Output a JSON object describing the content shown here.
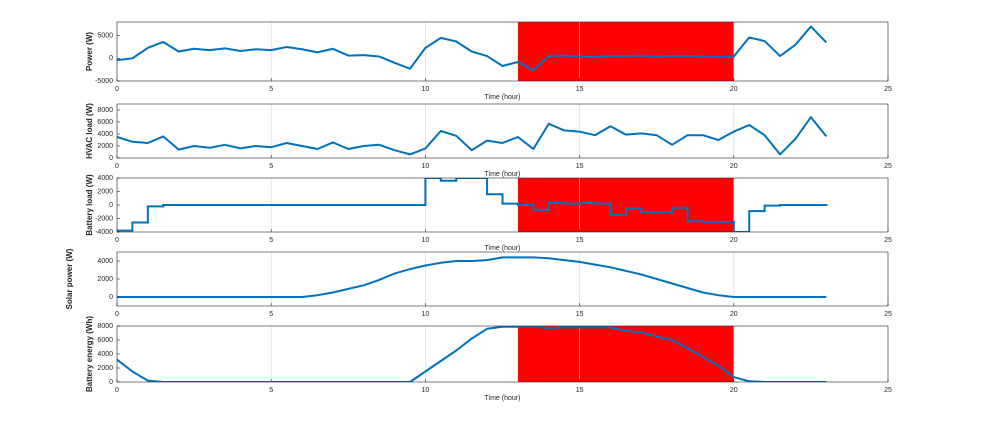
{
  "chart_data": [
    {
      "type": "line",
      "ylabel": "Power (W)",
      "xlabel": "Time (hour)",
      "color": "#0072bd",
      "grid": true,
      "shade": [
        13,
        20
      ],
      "shade_color": "#ff0000",
      "xlim": [
        0,
        25
      ],
      "xticks": [
        0,
        5,
        10,
        15,
        20,
        25
      ],
      "ylim": [
        -5000,
        8000
      ],
      "yticks": [
        -5000,
        0,
        5000
      ],
      "x": [
        0,
        0.5,
        1,
        1.5,
        2,
        2.5,
        3,
        3.5,
        4,
        4.5,
        5,
        5.5,
        6,
        6.5,
        7,
        7.5,
        8,
        8.5,
        9,
        9.5,
        10,
        10.5,
        11,
        11.5,
        12,
        12.5,
        13,
        13.5,
        14,
        14.5,
        15,
        15.5,
        16,
        16.5,
        17,
        17.5,
        18,
        18.5,
        19,
        19.5,
        20,
        20.5,
        21,
        21.5,
        22,
        22.5,
        23
      ],
      "values": [
        -400,
        0,
        2300,
        3600,
        1500,
        2100,
        1800,
        2200,
        1600,
        2000,
        1800,
        2500,
        2000,
        1300,
        2100,
        600,
        700,
        400,
        -1000,
        -2300,
        2300,
        4500,
        3700,
        1500,
        500,
        -1700,
        -800,
        -2600,
        500,
        600,
        400,
        300,
        500,
        500,
        600,
        400,
        500,
        500,
        400,
        300,
        400,
        4600,
        3800,
        500,
        3000,
        7000,
        3500
      ]
    },
    {
      "type": "line",
      "ylabel": "HVAC load (W)",
      "xlabel": "Time (hour)",
      "color": "#0072bd",
      "grid": true,
      "xlim": [
        0,
        25
      ],
      "xticks": [
        0,
        5,
        10,
        15,
        20,
        25
      ],
      "ylim": [
        0,
        9000
      ],
      "yticks": [
        0,
        2000,
        4000,
        6000,
        8000
      ],
      "x": [
        0,
        0.5,
        1,
        1.5,
        2,
        2.5,
        3,
        3.5,
        4,
        4.5,
        5,
        5.5,
        6,
        6.5,
        7,
        7.5,
        8,
        8.5,
        9,
        9.5,
        10,
        10.5,
        11,
        11.5,
        12,
        12.5,
        13,
        13.5,
        14,
        14.5,
        15,
        15.5,
        16,
        16.5,
        17,
        17.5,
        18,
        18.5,
        19,
        19.5,
        20,
        20.5,
        21,
        21.5,
        22,
        22.5,
        23
      ],
      "values": [
        3500,
        2700,
        2500,
        3600,
        1400,
        2000,
        1700,
        2200,
        1600,
        2000,
        1800,
        2500,
        2000,
        1500,
        2600,
        1500,
        2000,
        2200,
        1300,
        600,
        1600,
        4500,
        3700,
        1300,
        2900,
        2500,
        3500,
        1500,
        5700,
        4600,
        4400,
        3800,
        5300,
        3900,
        4100,
        3800,
        2200,
        3800,
        3800,
        3000,
        4400,
        5500,
        3800,
        600,
        3200,
        6800,
        3600
      ]
    },
    {
      "type": "step",
      "ylabel": "Battery load (W)",
      "xlabel": "Time (hour)",
      "color": "#0072bd",
      "grid": true,
      "shade": [
        13,
        20
      ],
      "shade_color": "#ff0000",
      "xlim": [
        0,
        25
      ],
      "xticks": [
        0,
        5,
        10,
        15,
        20,
        25
      ],
      "ylim": [
        -4000,
        4000
      ],
      "yticks": [
        -4000,
        -2000,
        0,
        2000,
        4000
      ],
      "x": [
        0,
        0.5,
        1,
        1.5,
        2,
        2.5,
        3,
        3.5,
        4,
        4.5,
        5,
        5.5,
        6,
        6.5,
        7,
        7.5,
        8,
        8.5,
        9,
        9.5,
        10,
        10.5,
        11,
        11.5,
        12,
        12.5,
        13,
        13.5,
        14,
        14.5,
        15,
        15.5,
        16,
        16.5,
        17,
        17.5,
        18,
        18.5,
        19,
        19.5,
        20,
        20.5,
        21,
        21.5,
        22,
        22.5,
        23
      ],
      "values": [
        -3800,
        -2600,
        -200,
        0,
        0,
        0,
        0,
        0,
        0,
        0,
        0,
        0,
        0,
        0,
        0,
        0,
        0,
        0,
        0,
        0,
        4000,
        3600,
        4000,
        4000,
        1600,
        200,
        0,
        -700,
        300,
        200,
        300,
        200,
        -1500,
        -500,
        -1100,
        -1100,
        -400,
        -2400,
        -2500,
        -2500,
        -4000,
        -900,
        -100,
        0,
        0,
        0,
        0
      ]
    },
    {
      "type": "line",
      "ylabel": "Solar power (W)",
      "color": "#0072bd",
      "grid": true,
      "xlim": [
        0,
        25
      ],
      "xticks": [
        0,
        5,
        10,
        15,
        20,
        25
      ],
      "ylim": [
        -1000,
        5000
      ],
      "yticks": [
        0,
        2000,
        4000
      ],
      "x": [
        0,
        0.5,
        1,
        1.5,
        2,
        2.5,
        3,
        3.5,
        4,
        4.5,
        5,
        5.5,
        6,
        6.5,
        7,
        7.5,
        8,
        8.5,
        9,
        9.5,
        10,
        10.5,
        11,
        11.5,
        12,
        12.5,
        13,
        13.5,
        14,
        14.5,
        15,
        15.5,
        16,
        16.5,
        17,
        17.5,
        18,
        18.5,
        19,
        19.5,
        20,
        20.5,
        21,
        21.5,
        22,
        22.5,
        23
      ],
      "values": [
        0,
        0,
        0,
        0,
        0,
        0,
        0,
        0,
        0,
        0,
        0,
        0,
        0,
        200,
        500,
        900,
        1300,
        1900,
        2600,
        3100,
        3500,
        3800,
        4000,
        4000,
        4100,
        4400,
        4400,
        4400,
        4300,
        4100,
        3900,
        3600,
        3300,
        2900,
        2500,
        2000,
        1500,
        1000,
        500,
        200,
        0,
        0,
        0,
        0,
        0,
        0,
        0
      ]
    },
    {
      "type": "line",
      "ylabel": "Battery energy (Wh)",
      "xlabel": "Time (hour)",
      "color": "#0072bd",
      "grid": true,
      "shade": [
        13,
        20
      ],
      "shade_color": "#ff0000",
      "xlim": [
        0,
        25
      ],
      "xticks": [
        0,
        5,
        10,
        15,
        20,
        25
      ],
      "ylim": [
        0,
        8000
      ],
      "yticks": [
        0,
        2000,
        4000,
        6000,
        8000
      ],
      "x": [
        0,
        0.5,
        1,
        1.5,
        2,
        2.5,
        3,
        3.5,
        4,
        4.5,
        5,
        5.5,
        6,
        6.5,
        7,
        7.5,
        8,
        8.5,
        9,
        9.5,
        10,
        10.5,
        11,
        11.5,
        12,
        12.5,
        13,
        13.5,
        14,
        14.5,
        15,
        15.5,
        16,
        16.5,
        17,
        17.5,
        18,
        18.5,
        19,
        19.5,
        20,
        20.5,
        21,
        21.5,
        22,
        22.5,
        23
      ],
      "values": [
        3200,
        1500,
        200,
        0,
        0,
        0,
        0,
        0,
        0,
        0,
        0,
        0,
        0,
        0,
        0,
        0,
        0,
        0,
        0,
        0,
        1500,
        3000,
        4500,
        6200,
        7600,
        7900,
        7900,
        7900,
        7700,
        7800,
        7800,
        7800,
        7800,
        7300,
        7100,
        6500,
        6000,
        4800,
        3600,
        2300,
        700,
        100,
        0,
        0,
        0,
        0,
        0
      ]
    }
  ]
}
